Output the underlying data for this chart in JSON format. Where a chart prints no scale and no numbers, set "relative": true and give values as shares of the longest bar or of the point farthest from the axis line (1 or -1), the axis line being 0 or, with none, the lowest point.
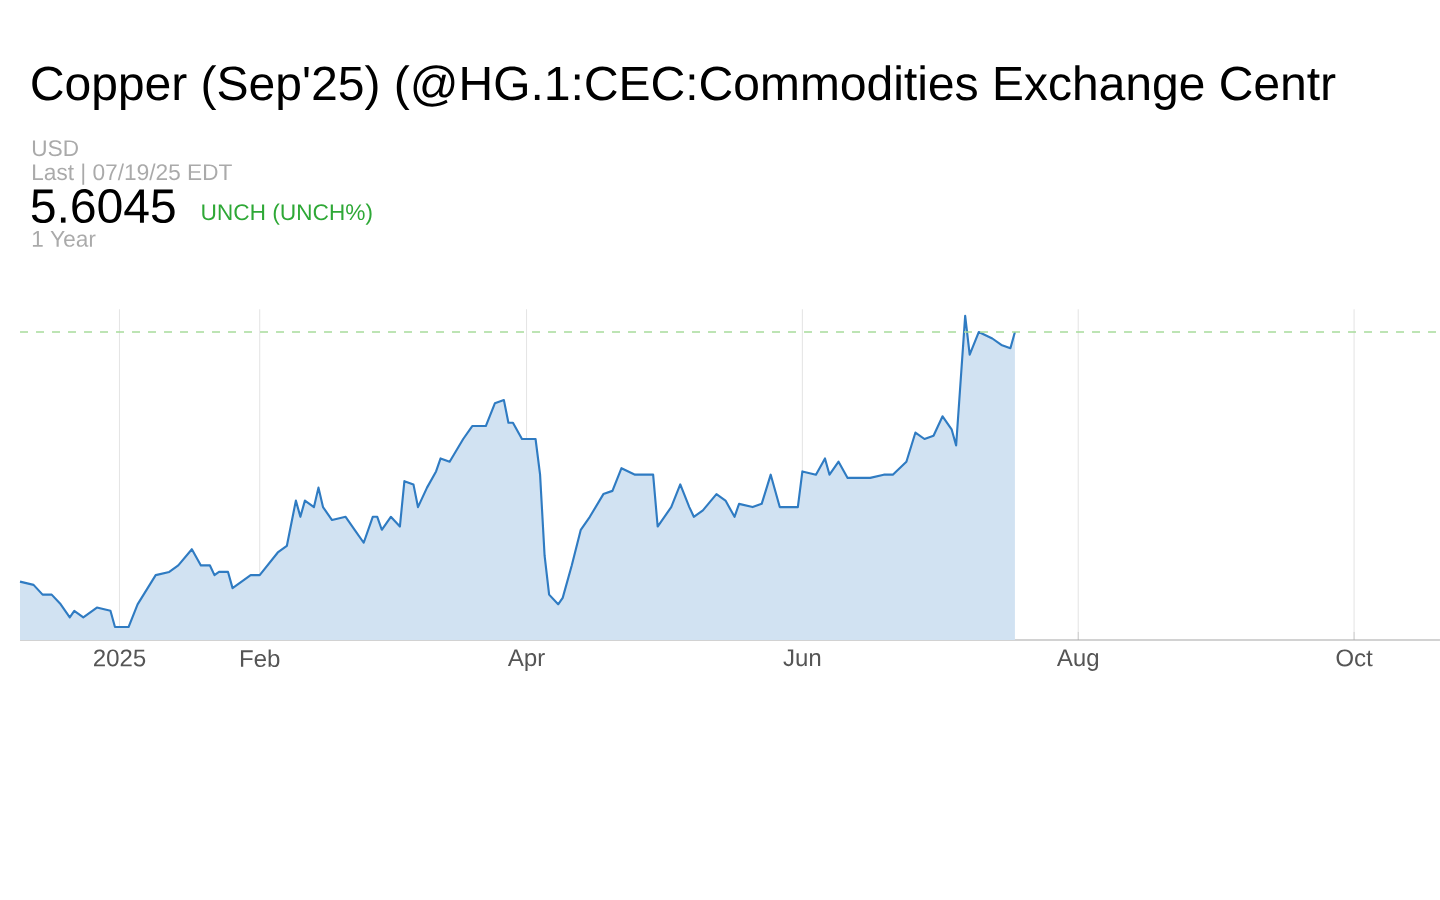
{
  "chart_data": {
    "type": "area",
    "title": "Copper (Sep'25) (@HG.1:CEC:Commodities Exchange Centr",
    "subtitle": "USD",
    "annotations": [
      "Last | 07/19/25 EDT",
      "5.6045",
      "UNCH (UNCH%)",
      "1 Year"
    ],
    "relative": true,
    "grid": "x",
    "xlim": [
      "2024-12-10",
      "2025-10-20"
    ],
    "xticks": [
      {
        "value": "2025-01-01",
        "label": "2025"
      },
      {
        "value": "2025-02-01",
        "label": "Feb"
      },
      {
        "value": "2025-04-01",
        "label": "Apr"
      },
      {
        "value": "2025-06-01",
        "label": "Jun"
      },
      {
        "value": "2025-08-01",
        "label": "Aug"
      },
      {
        "value": "2025-10-01",
        "label": "Oct"
      }
    ],
    "x": [
      "2024-12-10",
      "2024-12-13",
      "2024-12-15",
      "2024-12-17",
      "2024-12-19",
      "2024-12-21",
      "2024-12-22",
      "2024-12-24",
      "2024-12-27",
      "2024-12-30",
      "2024-12-31",
      "2025-01-03",
      "2025-01-05",
      "2025-01-09",
      "2025-01-12",
      "2025-01-14",
      "2025-01-17",
      "2025-01-19",
      "2025-01-21",
      "2025-01-22",
      "2025-01-23",
      "2025-01-25",
      "2025-01-26",
      "2025-01-30",
      "2025-02-01",
      "2025-02-05",
      "2025-02-07",
      "2025-02-09",
      "2025-02-10",
      "2025-02-11",
      "2025-02-13",
      "2025-02-14",
      "2025-02-15",
      "2025-02-17",
      "2025-02-20",
      "2025-02-22",
      "2025-02-24",
      "2025-02-26",
      "2025-02-27",
      "2025-02-28",
      "2025-03-02",
      "2025-03-04",
      "2025-03-05",
      "2025-03-07",
      "2025-03-08",
      "2025-03-10",
      "2025-03-12",
      "2025-03-13",
      "2025-03-15",
      "2025-03-18",
      "2025-03-20",
      "2025-03-23",
      "2025-03-25",
      "2025-03-27",
      "2025-03-28",
      "2025-03-29",
      "2025-03-31",
      "2025-04-03",
      "2025-04-04",
      "2025-04-05",
      "2025-04-06",
      "2025-04-08",
      "2025-04-09",
      "2025-04-11",
      "2025-04-13",
      "2025-04-15",
      "2025-04-18",
      "2025-04-20",
      "2025-04-22",
      "2025-04-25",
      "2025-04-29",
      "2025-04-30",
      "2025-05-03",
      "2025-05-05",
      "2025-05-07",
      "2025-05-08",
      "2025-05-10",
      "2025-05-13",
      "2025-05-15",
      "2025-05-17",
      "2025-05-18",
      "2025-05-21",
      "2025-05-23",
      "2025-05-25",
      "2025-05-27",
      "2025-05-31",
      "2025-06-01",
      "2025-06-04",
      "2025-06-06",
      "2025-06-07",
      "2025-06-09",
      "2025-06-11",
      "2025-06-13",
      "2025-06-16",
      "2025-06-19",
      "2025-06-21",
      "2025-06-24",
      "2025-06-26",
      "2025-06-28",
      "2025-06-30",
      "2025-07-02",
      "2025-07-04",
      "2025-07-05",
      "2025-07-07",
      "2025-07-08",
      "2025-07-10",
      "2025-07-13",
      "2025-07-15",
      "2025-07-17",
      "2025-07-18"
    ],
    "series": [
      {
        "color": "#2f7bc2",
        "values": [
          0.18,
          0.17,
          0.14,
          0.14,
          0.11,
          0.07,
          0.09,
          0.07,
          0.1,
          0.09,
          0.04,
          0.04,
          0.11,
          0.2,
          0.21,
          0.23,
          0.28,
          0.23,
          0.23,
          0.2,
          0.21,
          0.21,
          0.16,
          0.2,
          0.2,
          0.27,
          0.29,
          0.43,
          0.38,
          0.43,
          0.41,
          0.47,
          0.41,
          0.37,
          0.38,
          0.34,
          0.3,
          0.38,
          0.38,
          0.34,
          0.38,
          0.35,
          0.49,
          0.48,
          0.41,
          0.47,
          0.52,
          0.56,
          0.55,
          0.62,
          0.66,
          0.66,
          0.73,
          0.74,
          0.67,
          0.67,
          0.62,
          0.62,
          0.51,
          0.26,
          0.14,
          0.11,
          0.13,
          0.23,
          0.34,
          0.38,
          0.45,
          0.46,
          0.53,
          0.51,
          0.51,
          0.35,
          0.41,
          0.48,
          0.41,
          0.38,
          0.4,
          0.45,
          0.43,
          0.38,
          0.42,
          0.41,
          0.42,
          0.51,
          0.41,
          0.41,
          0.52,
          0.51,
          0.56,
          0.51,
          0.55,
          0.5,
          0.5,
          0.5,
          0.51,
          0.51,
          0.55,
          0.64,
          0.62,
          0.63,
          0.69,
          0.65,
          0.6,
          1,
          0.88,
          0.95,
          0.93,
          0.91,
          0.9,
          0.95
        ]
      }
    ],
    "ref_lines": [
      {
        "axis": "y",
        "value": 0.95,
        "color": "#a8dc9c",
        "line_style": "dashed"
      }
    ]
  }
}
